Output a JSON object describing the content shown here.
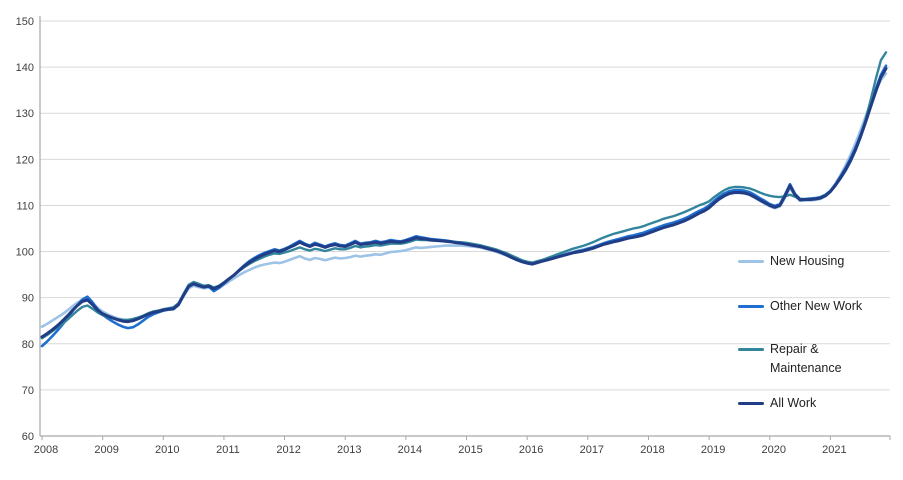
{
  "chart_data": {
    "type": "line",
    "frequency": "monthly",
    "start_year": 2008,
    "x_tick_labels": [
      "2008",
      "2009",
      "2010",
      "2011",
      "2012",
      "2013",
      "2014",
      "2015",
      "2016",
      "2017",
      "2018",
      "2019",
      "2020",
      "2021"
    ],
    "y_ticks": [
      60,
      70,
      80,
      90,
      100,
      110,
      120,
      130,
      140,
      150
    ],
    "ylim": [
      60,
      150
    ],
    "grid": "horizontal",
    "grid_color": "#d9d9d9",
    "axis_color": "#a6a6a6",
    "tick_label_color": "#3f3f3f",
    "legend_position": "inside-right",
    "series": [
      {
        "name": "New Housing",
        "color": "#9DC3E6",
        "width": 2.6,
        "values": [
          83.7,
          84.3,
          85.0,
          85.7,
          86.4,
          87.2,
          88.1,
          88.9,
          89.6,
          89.8,
          88.8,
          87.8,
          87.0,
          86.4,
          85.9,
          85.5,
          85.2,
          85.1,
          85.3,
          85.6,
          86.0,
          86.5,
          86.9,
          87.1,
          87.4,
          87.6,
          87.7,
          88.5,
          90.3,
          92.0,
          92.6,
          92.3,
          92.0,
          92.2,
          91.7,
          92.1,
          92.8,
          93.5,
          94.2,
          94.9,
          95.5,
          96.0,
          96.5,
          96.9,
          97.2,
          97.4,
          97.6,
          97.5,
          97.8,
          98.2,
          98.6,
          99.0,
          98.5,
          98.2,
          98.6,
          98.4,
          98.1,
          98.4,
          98.7,
          98.5,
          98.6,
          98.8,
          99.1,
          98.9,
          99.1,
          99.2,
          99.4,
          99.3,
          99.6,
          99.9,
          100.0,
          100.1,
          100.3,
          100.6,
          100.9,
          100.8,
          100.9,
          101.0,
          101.1,
          101.2,
          101.3,
          101.3,
          101.3,
          101.3,
          101.2,
          101.1,
          101.0,
          100.8,
          100.5,
          100.2,
          99.9,
          99.5,
          99.1,
          98.6,
          98.1,
          97.7,
          97.4,
          97.2,
          97.5,
          97.9,
          98.2,
          98.6,
          98.9,
          99.2,
          99.6,
          99.9,
          100.2,
          100.4,
          100.7,
          101.0,
          101.4,
          101.8,
          102.1,
          102.4,
          102.6,
          102.9,
          103.1,
          103.3,
          103.5,
          103.8,
          104.2,
          104.6,
          105.0,
          105.4,
          105.7,
          106.0,
          106.4,
          106.8,
          107.3,
          107.8,
          108.4,
          108.9,
          109.6,
          110.5,
          111.3,
          112.0,
          112.5,
          112.7,
          112.7,
          112.6,
          112.3,
          111.7,
          111.0,
          110.4,
          109.8,
          109.4,
          109.8,
          111.6,
          113.8,
          112.0,
          111.0,
          111.1,
          111.1,
          111.2,
          111.4,
          112.0,
          113.1,
          114.7,
          116.6,
          118.7,
          121.0,
          123.6,
          126.4,
          129.4,
          132.4,
          135.0,
          137.2,
          138.6
        ]
      },
      {
        "name": "Other New Work",
        "color": "#1E6FD0",
        "width": 2.6,
        "values": [
          79.5,
          80.5,
          81.6,
          82.8,
          84.1,
          85.5,
          87.0,
          88.4,
          89.6,
          90.2,
          89.0,
          87.5,
          86.3,
          85.5,
          84.8,
          84.2,
          83.7,
          83.4,
          83.6,
          84.2,
          85.0,
          85.8,
          86.4,
          86.8,
          87.2,
          87.4,
          87.5,
          88.4,
          90.6,
          92.6,
          93.2,
          92.7,
          92.3,
          92.4,
          91.4,
          92.1,
          93.0,
          94.0,
          94.9,
          96.0,
          97.0,
          97.9,
          98.6,
          99.2,
          99.7,
          100.1,
          100.5,
          100.2,
          100.6,
          101.1,
          101.7,
          102.3,
          101.7,
          101.3,
          101.9,
          101.5,
          101.1,
          101.5,
          101.8,
          101.4,
          101.3,
          101.8,
          102.3,
          101.7,
          101.9,
          102.0,
          102.3,
          102.0,
          102.2,
          102.5,
          102.3,
          102.2,
          102.5,
          102.9,
          103.3,
          103.1,
          102.9,
          102.7,
          102.6,
          102.5,
          102.4,
          102.2,
          102.0,
          101.9,
          101.7,
          101.5,
          101.3,
          101.1,
          100.8,
          100.5,
          100.2,
          99.8,
          99.3,
          98.8,
          98.3,
          97.9,
          97.6,
          97.4,
          97.7,
          98.0,
          98.3,
          98.6,
          98.9,
          99.2,
          99.5,
          99.8,
          100.1,
          100.3,
          100.6,
          100.9,
          101.3,
          101.7,
          102.1,
          102.4,
          102.7,
          103.0,
          103.3,
          103.5,
          103.8,
          104.1,
          104.5,
          104.9,
          105.3,
          105.7,
          106.0,
          106.3,
          106.7,
          107.1,
          107.6,
          108.2,
          108.8,
          109.3,
          110.0,
          111.0,
          111.9,
          112.6,
          113.1,
          113.3,
          113.3,
          113.2,
          112.9,
          112.3,
          111.6,
          111.0,
          110.3,
          109.9,
          110.3,
          112.3,
          114.6,
          112.5,
          111.4,
          111.4,
          111.5,
          111.6,
          111.8,
          112.3,
          113.2,
          114.6,
          116.3,
          118.1,
          120.2,
          122.6,
          125.4,
          128.6,
          132.0,
          135.3,
          138.3,
          140.3
        ]
      },
      {
        "name": "Repair & Maintenance",
        "color": "#31859C",
        "width": 2.4,
        "values": [
          81.2,
          81.9,
          82.7,
          83.5,
          84.3,
          85.2,
          86.2,
          87.2,
          88.0,
          88.3,
          87.6,
          86.8,
          86.2,
          85.8,
          85.5,
          85.3,
          85.2,
          85.2,
          85.4,
          85.7,
          86.1,
          86.6,
          87.0,
          87.2,
          87.5,
          87.7,
          87.9,
          88.8,
          90.8,
          92.8,
          93.4,
          93.0,
          92.6,
          92.7,
          92.2,
          92.6,
          93.3,
          94.1,
          94.9,
          95.8,
          96.6,
          97.3,
          97.9,
          98.4,
          98.9,
          99.3,
          99.6,
          99.5,
          99.8,
          100.1,
          100.5,
          100.9,
          100.5,
          100.2,
          100.6,
          100.4,
          100.1,
          100.4,
          100.7,
          100.5,
          100.5,
          100.8,
          101.2,
          100.9,
          101.1,
          101.2,
          101.4,
          101.3,
          101.5,
          101.7,
          101.7,
          101.7,
          101.9,
          102.2,
          102.6,
          102.5,
          102.5,
          102.4,
          102.4,
          102.3,
          102.3,
          102.2,
          102.1,
          102.0,
          101.9,
          101.7,
          101.5,
          101.3,
          101.0,
          100.7,
          100.4,
          100.0,
          99.6,
          99.1,
          98.6,
          98.1,
          97.8,
          97.6,
          97.9,
          98.2,
          98.6,
          99.0,
          99.4,
          99.8,
          100.2,
          100.6,
          100.9,
          101.2,
          101.6,
          102.0,
          102.5,
          103.0,
          103.4,
          103.8,
          104.1,
          104.4,
          104.7,
          105.0,
          105.2,
          105.5,
          105.9,
          106.3,
          106.7,
          107.1,
          107.4,
          107.7,
          108.1,
          108.5,
          109.0,
          109.5,
          110.0,
          110.4,
          110.9,
          111.8,
          112.6,
          113.3,
          113.8,
          114.0,
          114.0,
          113.9,
          113.7,
          113.3,
          112.8,
          112.4,
          112.1,
          111.9,
          111.8,
          112.0,
          112.3,
          111.9,
          111.4,
          111.3,
          111.4,
          111.5,
          111.7,
          112.2,
          113.0,
          114.3,
          115.8,
          117.5,
          119.5,
          122.0,
          125.0,
          128.8,
          133.0,
          137.5,
          141.5,
          143.2
        ]
      },
      {
        "name": "All Work",
        "color": "#203D85",
        "width": 3.0,
        "values": [
          81.5,
          82.2,
          83.0,
          83.9,
          84.9,
          86.0,
          87.2,
          88.3,
          89.2,
          89.5,
          88.5,
          87.3,
          86.5,
          86.0,
          85.6,
          85.2,
          84.9,
          84.8,
          85.0,
          85.4,
          85.9,
          86.4,
          86.8,
          87.0,
          87.3,
          87.5,
          87.6,
          88.5,
          90.5,
          92.4,
          93.0,
          92.6,
          92.3,
          92.5,
          91.9,
          92.4,
          93.2,
          94.1,
          94.9,
          95.9,
          96.8,
          97.6,
          98.3,
          98.9,
          99.4,
          99.8,
          100.2,
          100.0,
          100.4,
          100.9,
          101.4,
          102.0,
          101.5,
          101.1,
          101.6,
          101.3,
          100.9,
          101.3,
          101.5,
          101.2,
          101.1,
          101.5,
          102.0,
          101.5,
          101.7,
          101.8,
          102.0,
          101.8,
          102.0,
          102.2,
          102.1,
          102.0,
          102.3,
          102.6,
          103.0,
          102.8,
          102.7,
          102.5,
          102.4,
          102.3,
          102.2,
          102.1,
          101.9,
          101.8,
          101.6,
          101.4,
          101.2,
          101.0,
          100.7,
          100.4,
          100.1,
          99.7,
          99.2,
          98.7,
          98.2,
          97.8,
          97.5,
          97.3,
          97.6,
          97.9,
          98.2,
          98.5,
          98.8,
          99.1,
          99.4,
          99.7,
          99.9,
          100.1,
          100.4,
          100.7,
          101.1,
          101.5,
          101.8,
          102.1,
          102.3,
          102.6,
          102.9,
          103.1,
          103.3,
          103.6,
          104.0,
          104.4,
          104.8,
          105.2,
          105.5,
          105.8,
          106.2,
          106.6,
          107.1,
          107.7,
          108.3,
          108.8,
          109.5,
          110.5,
          111.4,
          112.1,
          112.6,
          112.8,
          112.8,
          112.7,
          112.4,
          111.8,
          111.2,
          110.6,
          110.0,
          109.6,
          110.0,
          112.0,
          114.3,
          112.3,
          111.2,
          111.3,
          111.3,
          111.4,
          111.6,
          112.1,
          113.0,
          114.4,
          116.0,
          117.8,
          119.8,
          122.2,
          125.0,
          128.2,
          131.5,
          134.8,
          137.8,
          139.7
        ]
      }
    ]
  }
}
